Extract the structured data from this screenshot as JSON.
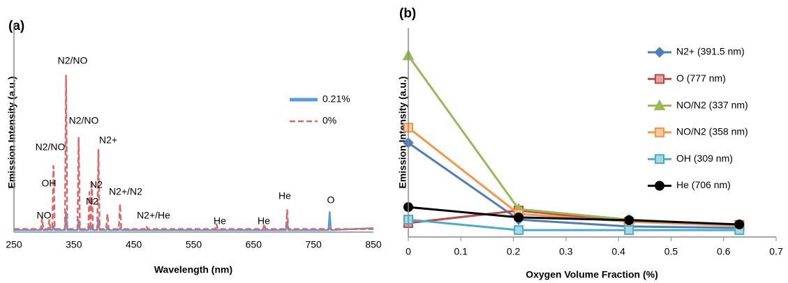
{
  "chart_data": [
    {
      "type": "line",
      "title": "(a)",
      "x_label": "Wavelength (nm)",
      "y_label": "Emission Intensity (a.u.)",
      "xlim": [
        250,
        850
      ],
      "xticks": [
        250,
        350,
        450,
        550,
        650,
        750,
        850
      ],
      "ylim": [
        0,
        100
      ],
      "x": [
        250,
        295,
        297,
        299,
        307,
        309,
        311,
        314,
        316,
        318,
        335,
        337,
        339,
        356,
        358,
        360,
        374,
        376,
        378,
        380,
        382,
        389,
        391,
        393,
        404,
        406,
        408,
        425,
        427,
        429,
        469,
        471,
        473,
        586,
        588,
        590,
        666,
        668,
        670,
        704,
        706,
        708,
        775,
        777,
        779,
        850
      ],
      "series": [
        {
          "name": "0.21%",
          "color": "#5b9bd5",
          "dash": false,
          "values": [
            1,
            1,
            2,
            1,
            1,
            2,
            1,
            1,
            3,
            1,
            1,
            10,
            1,
            1,
            6,
            1,
            1,
            3,
            1,
            3,
            1,
            1,
            7,
            1,
            1,
            2,
            1,
            1,
            2,
            1,
            1,
            1,
            1,
            1,
            1,
            1,
            1,
            1,
            1,
            1,
            5,
            1,
            1,
            10,
            1,
            2
          ]
        },
        {
          "name": "0%",
          "color": "#e06666",
          "dash": true,
          "values": [
            1.5,
            1.5,
            7,
            1.5,
            1.5,
            6,
            1.5,
            1.5,
            33,
            1.5,
            1.5,
            78,
            1.5,
            1.5,
            47,
            1.5,
            1.5,
            20,
            1.5,
            24,
            1.5,
            1.5,
            41,
            1.5,
            1.5,
            9,
            1.5,
            1.5,
            14,
            1.5,
            1.5,
            3,
            1.5,
            1.5,
            4,
            1.5,
            1.5,
            4,
            1.5,
            1.5,
            11,
            1.5,
            1.5,
            2,
            1.5,
            1.5
          ]
        }
      ],
      "annotations": [
        "N2/NO",
        "N2/NO",
        "N2/NO",
        "N2+",
        "OH",
        "N2",
        "N2",
        "N2+/N2",
        "NO",
        "N2+/He",
        "He",
        "He",
        "He",
        "O"
      ]
    },
    {
      "type": "line",
      "title": "(b)",
      "x_label": "Oxygen Volume Fraction (%)",
      "y_label": "Emission Intensity (a.u.)",
      "xlim": [
        0,
        0.7
      ],
      "xticks": [
        0,
        0.1,
        0.2,
        0.3,
        0.4,
        0.5,
        0.6,
        0.7
      ],
      "ylim": [
        0,
        100
      ],
      "x": [
        0,
        0.21,
        0.42,
        0.63
      ],
      "series": [
        {
          "name": "N2+ (391.5 nm)",
          "color": "#4a7ebb",
          "marker": "diamond",
          "values": [
            46.6,
            8.6,
            5.2,
            4.5
          ]
        },
        {
          "name": "O (777 nm)",
          "color": "#be4b48",
          "marker": "square",
          "values": [
            6.9,
            13.1,
            7.6,
            5.9
          ]
        },
        {
          "name": "NO/N2 (337 nm)",
          "color": "#98b954",
          "marker": "triangle",
          "values": [
            89.7,
            13.8,
            8.6,
            5.9
          ]
        },
        {
          "name": "NO/N2 (358 nm)",
          "color": "#f79646",
          "marker": "xsquare",
          "values": [
            54.1,
            11.4,
            7.6,
            5.5
          ]
        },
        {
          "name": "OH (309 nm)",
          "color": "#4bacc6",
          "marker": "star",
          "values": [
            8.6,
            3.4,
            3.4,
            3.4
          ]
        },
        {
          "name": "He (706 nm)",
          "color": "#000000",
          "marker": "circle",
          "values": [
            14.8,
            9.7,
            8.3,
            6.2
          ]
        }
      ]
    }
  ]
}
